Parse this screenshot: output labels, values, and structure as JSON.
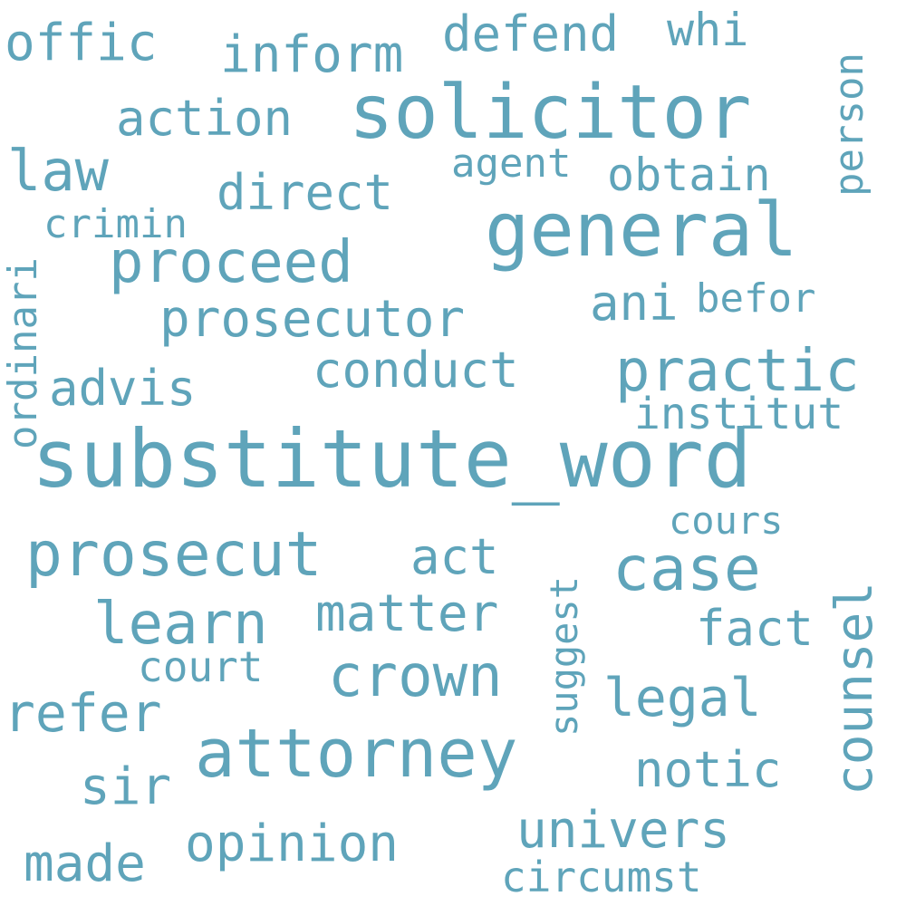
{
  "cloud": {
    "color": "#5fa4ba",
    "background": "#ffffff",
    "words": [
      {
        "text": "substitute_word",
        "orientation": "horizontal"
      },
      {
        "text": "solicitor",
        "orientation": "horizontal"
      },
      {
        "text": "general",
        "orientation": "horizontal"
      },
      {
        "text": "attorney",
        "orientation": "horizontal"
      },
      {
        "text": "prosecut",
        "orientation": "horizontal"
      },
      {
        "text": "case",
        "orientation": "horizontal"
      },
      {
        "text": "proceed",
        "orientation": "horizontal"
      },
      {
        "text": "crown",
        "orientation": "horizontal"
      },
      {
        "text": "learn",
        "orientation": "horizontal"
      },
      {
        "text": "practic",
        "orientation": "horizontal"
      },
      {
        "text": "law",
        "orientation": "horizontal"
      },
      {
        "text": "legal",
        "orientation": "horizontal"
      },
      {
        "text": "refer",
        "orientation": "horizontal"
      },
      {
        "text": "offic",
        "orientation": "horizontal"
      },
      {
        "text": "prosecutor",
        "orientation": "horizontal"
      },
      {
        "text": "matter",
        "orientation": "horizontal"
      },
      {
        "text": "opinion",
        "orientation": "horizontal"
      },
      {
        "text": "univers",
        "orientation": "horizontal"
      },
      {
        "text": "made",
        "orientation": "horizontal"
      },
      {
        "text": "sir",
        "orientation": "horizontal"
      },
      {
        "text": "inform",
        "orientation": "horizontal"
      },
      {
        "text": "conduct",
        "orientation": "horizontal"
      },
      {
        "text": "action",
        "orientation": "horizontal"
      },
      {
        "text": "direct",
        "orientation": "horizontal"
      },
      {
        "text": "advis",
        "orientation": "horizontal"
      },
      {
        "text": "defend",
        "orientation": "horizontal"
      },
      {
        "text": "notic",
        "orientation": "horizontal"
      },
      {
        "text": "act",
        "orientation": "horizontal"
      },
      {
        "text": "ani",
        "orientation": "horizontal"
      },
      {
        "text": "fact",
        "orientation": "horizontal"
      },
      {
        "text": "obtain",
        "orientation": "horizontal"
      },
      {
        "text": "whi",
        "orientation": "horizontal"
      },
      {
        "text": "institut",
        "orientation": "horizontal"
      },
      {
        "text": "circumst",
        "orientation": "horizontal"
      },
      {
        "text": "court",
        "orientation": "horizontal"
      },
      {
        "text": "agent",
        "orientation": "horizontal"
      },
      {
        "text": "befor",
        "orientation": "horizontal"
      },
      {
        "text": "crimin",
        "orientation": "horizontal"
      },
      {
        "text": "cours",
        "orientation": "horizontal"
      },
      {
        "text": "counsel",
        "orientation": "vertical"
      },
      {
        "text": "ordinari",
        "orientation": "vertical"
      },
      {
        "text": "person",
        "orientation": "vertical"
      },
      {
        "text": "suggest",
        "orientation": "vertical"
      }
    ]
  }
}
